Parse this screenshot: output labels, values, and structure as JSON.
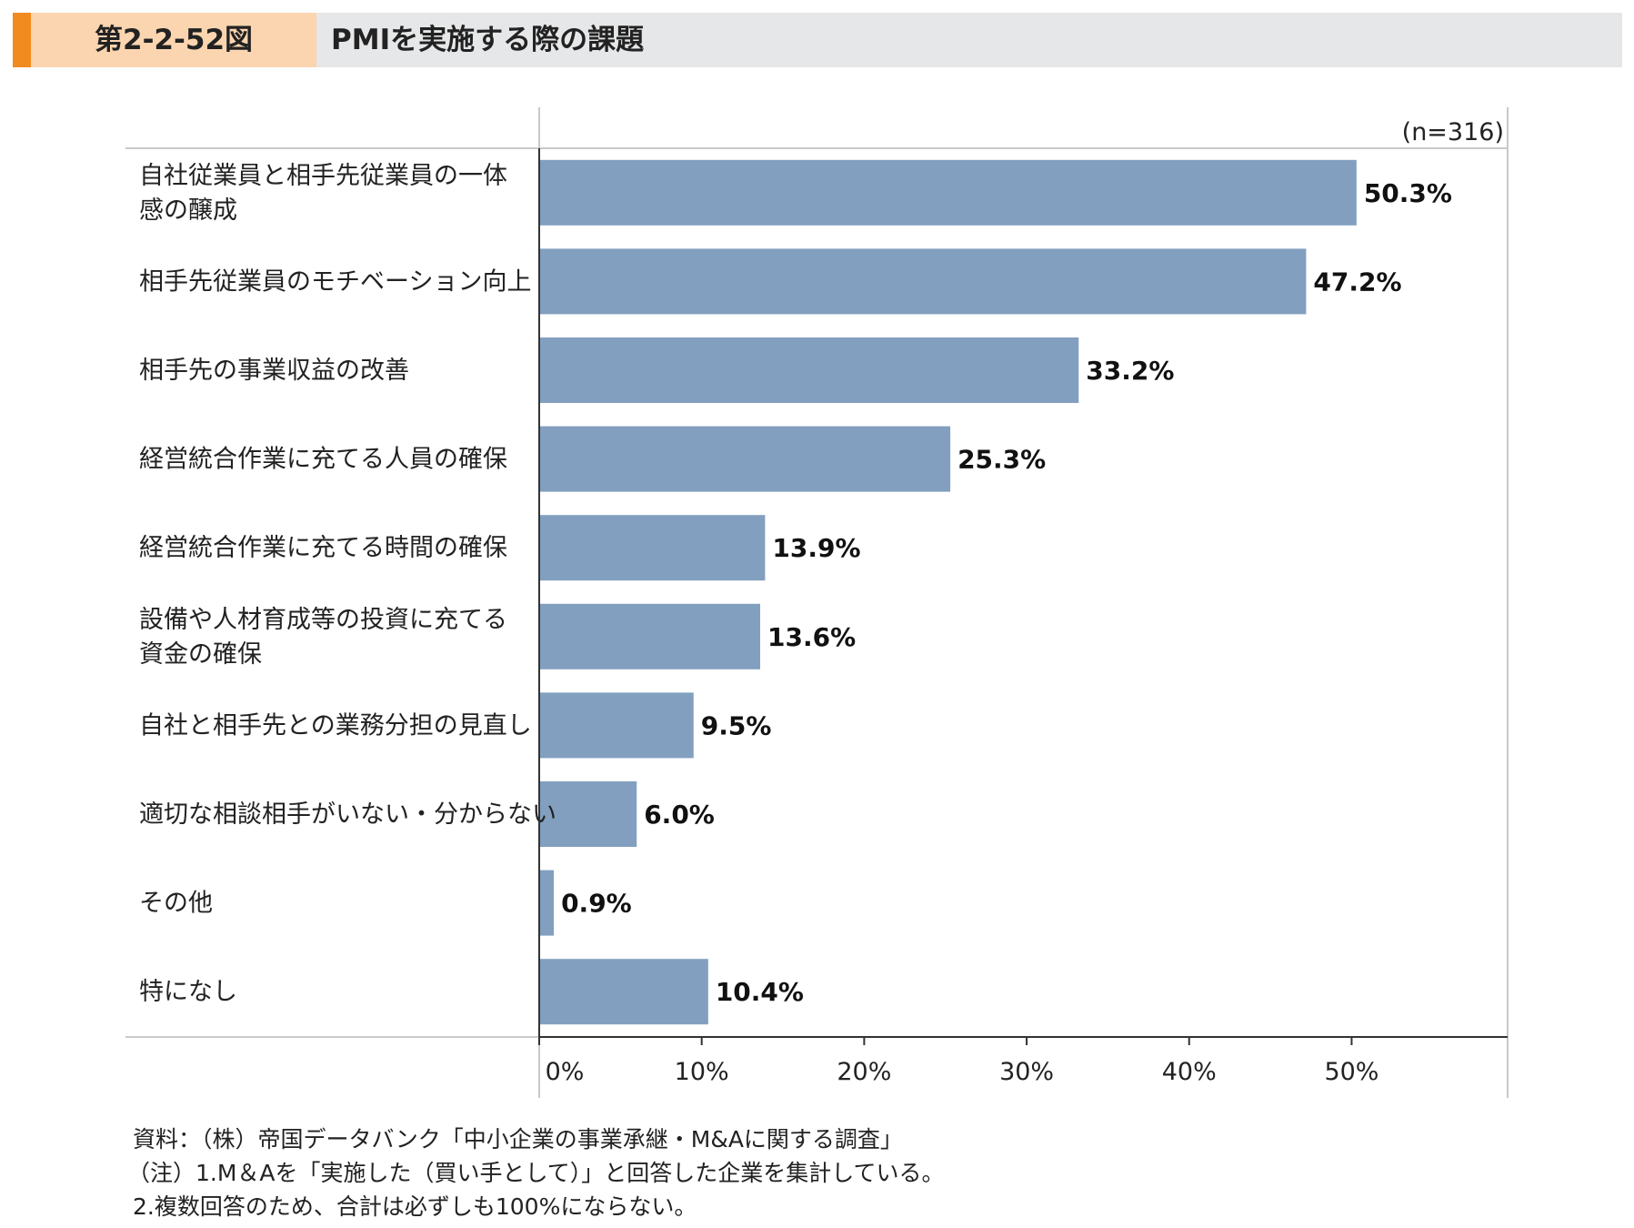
{
  "header": {
    "figure_number": "第2-2-52図",
    "title": "PMIを実施する際の課題"
  },
  "colors": {
    "accent": "#f18a1f",
    "figure_tag_bg": "#fbd5b0",
    "header_bg": "#e6e7e8",
    "bar": "#829fc0"
  },
  "chart_data": {
    "type": "bar",
    "orientation": "horizontal",
    "annotation": "(n=316)",
    "categories": [
      "自社従業員と相手先従業員の一体\n感の醸成",
      "相手先従業員のモチベーション向上",
      "相手先の事業収益の改善",
      "経営統合作業に充てる人員の確保",
      "経営統合作業に充てる時間の確保",
      "設備や人材育成等の投資に充てる\n資金の確保",
      "自社と相手先との業務分担の見直し",
      "適切な相談相手がいない・分からない",
      "その他",
      "特になし"
    ],
    "values": [
      50.3,
      47.2,
      33.2,
      25.3,
      13.9,
      13.6,
      9.5,
      6.0,
      0.9,
      10.4
    ],
    "value_labels": [
      "50.3%",
      "47.2%",
      "33.2%",
      "25.3%",
      "13.9%",
      "13.6%",
      "9.5%",
      "6.0%",
      "0.9%",
      "10.4%"
    ],
    "x_ticks": [
      0,
      10,
      20,
      30,
      40,
      50
    ],
    "x_tick_labels": [
      "0%",
      "10%",
      "20%",
      "30%",
      "40%",
      "50%"
    ],
    "xlim": [
      0,
      59.6
    ],
    "grid": false
  },
  "notes": [
    "資料：（株）帝国データバンク「中小企業の事業承継・M&Aに関する調査」",
    "（注）1.M＆Aを「実施した（買い手として）」と回答した企業を集計している。",
    "2.複数回答のため、合計は必ずしも100%にならない。"
  ]
}
